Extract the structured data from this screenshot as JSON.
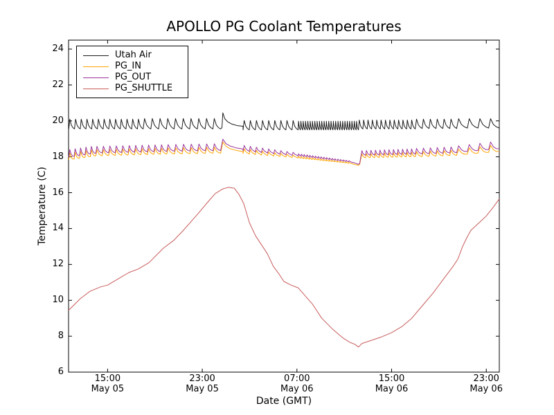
{
  "chart_data": {
    "type": "line",
    "title": "APOLLO PG Coolant Temperatures",
    "xlabel": "Date (GMT)",
    "ylabel": "Temperature (C)",
    "grid": false,
    "legend_position": "upper left",
    "x_unit": "hours since May 05 00:00 GMT",
    "xlim": [
      11.7,
      48.1
    ],
    "ylim": [
      6,
      24.5
    ],
    "yticks": [
      6,
      8,
      10,
      12,
      14,
      16,
      18,
      20,
      22,
      24
    ],
    "xticks": [
      {
        "t": 15,
        "time": "15:00",
        "date": "May 05"
      },
      {
        "t": 23,
        "time": "23:00",
        "date": "May 05"
      },
      {
        "t": 31,
        "time": "07:00",
        "date": "May 06"
      },
      {
        "t": 39,
        "time": "15:00",
        "date": "May 06"
      },
      {
        "t": 47,
        "time": "23:00",
        "date": "May 06"
      }
    ],
    "series": [
      {
        "name": "Utah Air",
        "color": "#1a1a1a",
        "description": "sawtooth oscillation around 19.5-20.1 C",
        "segments": [
          {
            "kind": "saw",
            "t": [
              11.72,
              18.0
            ],
            "period": 0.5,
            "min": 19.55,
            "amp": 0.55
          },
          {
            "kind": "saw",
            "t": [
              18.0,
              24.55
            ],
            "period": 0.68,
            "min": 19.55,
            "amp": 0.58
          },
          {
            "kind": "pts",
            "pts": [
              [
                24.55,
                19.55
              ],
              [
                24.66,
                19.62
              ],
              [
                24.74,
                20.45
              ],
              [
                24.9,
                20.12
              ],
              [
                25.15,
                19.95
              ],
              [
                25.5,
                19.82
              ],
              [
                26.0,
                19.73
              ],
              [
                26.45,
                19.7
              ]
            ]
          },
          {
            "kind": "saw",
            "t": [
              26.45,
              31.1
            ],
            "period": 0.5,
            "min": 19.5,
            "amp": 0.52
          },
          {
            "kind": "saw",
            "t": [
              31.1,
              36.2
            ],
            "period": 0.2,
            "min": 19.5,
            "amp": 0.48
          },
          {
            "kind": "saw",
            "t": [
              36.2,
              41.0
            ],
            "period": 0.37,
            "min": 19.55,
            "amp": 0.5
          },
          {
            "kind": "saw",
            "t": [
              41.0,
              44.5
            ],
            "period": 0.55,
            "min": 19.58,
            "amp": 0.52
          },
          {
            "kind": "saw",
            "t": [
              44.5,
              48.1
            ],
            "period": 0.85,
            "min": 19.6,
            "amp": 0.52
          }
        ]
      },
      {
        "name": "PG_IN",
        "color": "#ffa500",
        "description": "sawtooth around 17.5-18.8 C, dips to 17.5 near 12:00 May 06",
        "segments": [
          {
            "kind": "saw",
            "t": [
              11.72,
              14.0
            ],
            "period": 0.5,
            "min": [
              17.83,
              18.05
            ],
            "amp": 0.38
          },
          {
            "kind": "saw",
            "t": [
              14.0,
              20.0
            ],
            "period": 0.55,
            "min": [
              18.05,
              18.15
            ],
            "amp": 0.34
          },
          {
            "kind": "saw",
            "t": [
              20.0,
              24.55
            ],
            "period": 0.65,
            "min": [
              18.15,
              18.2
            ],
            "amp": 0.34
          },
          {
            "kind": "pts",
            "pts": [
              [
                24.55,
                18.2
              ],
              [
                24.74,
                18.83
              ],
              [
                25.0,
                18.58
              ],
              [
                25.35,
                18.45
              ],
              [
                25.85,
                18.36
              ],
              [
                26.45,
                18.28
              ]
            ]
          },
          {
            "kind": "saw",
            "t": [
              26.45,
              31.1
            ],
            "period": 0.5,
            "min": [
              18.18,
              17.93
            ],
            "amp": [
              0.26,
              0.12
            ]
          },
          {
            "kind": "saw",
            "t": [
              31.1,
              35.6
            ],
            "period": 0.24,
            "min": [
              17.93,
              17.62
            ],
            "amp": [
              0.1,
              0.05
            ]
          },
          {
            "kind": "pts",
            "pts": [
              [
                35.6,
                17.62
              ],
              [
                36.0,
                17.56
              ],
              [
                36.18,
                17.52
              ],
              [
                36.3,
                17.57
              ],
              [
                36.42,
                17.94
              ]
            ]
          },
          {
            "kind": "saw",
            "t": [
              36.42,
              41.0
            ],
            "period": 0.38,
            "min": [
              17.94,
              18.0
            ],
            "amp": [
              0.22,
              0.26
            ]
          },
          {
            "kind": "saw",
            "t": [
              41.0,
              44.5
            ],
            "period": 0.58,
            "min": [
              18.0,
              18.08
            ],
            "amp": [
              0.28,
              0.3
            ]
          },
          {
            "kind": "saw",
            "t": [
              44.5,
              48.1
            ],
            "period": 0.88,
            "min": [
              18.1,
              18.3
            ],
            "amp": [
              0.32,
              0.4
            ]
          }
        ]
      },
      {
        "name": "PG_OUT",
        "color": "#993399",
        "description": "sawtooth slightly above PG_IN, 17.6-18.95 C",
        "segments": [
          {
            "kind": "saw",
            "t": [
              11.72,
              14.0
            ],
            "period": 0.5,
            "min": [
              17.98,
              18.2
            ],
            "amp": 0.42
          },
          {
            "kind": "saw",
            "t": [
              14.0,
              20.0
            ],
            "period": 0.55,
            "min": [
              18.2,
              18.3
            ],
            "amp": 0.38
          },
          {
            "kind": "saw",
            "t": [
              20.0,
              24.55
            ],
            "period": 0.65,
            "min": [
              18.3,
              18.35
            ],
            "amp": 0.38
          },
          {
            "kind": "pts",
            "pts": [
              [
                24.55,
                18.35
              ],
              [
                24.74,
                18.98
              ],
              [
                25.0,
                18.73
              ],
              [
                25.35,
                18.6
              ],
              [
                25.85,
                18.5
              ],
              [
                26.45,
                18.43
              ]
            ]
          },
          {
            "kind": "saw",
            "t": [
              26.45,
              31.1
            ],
            "period": 0.5,
            "min": [
              18.33,
              18.05
            ],
            "amp": [
              0.3,
              0.15
            ]
          },
          {
            "kind": "saw",
            "t": [
              31.1,
              35.6
            ],
            "period": 0.24,
            "min": [
              18.05,
              17.7
            ],
            "amp": [
              0.12,
              0.06
            ]
          },
          {
            "kind": "pts",
            "pts": [
              [
                35.6,
                17.7
              ],
              [
                36.0,
                17.63
              ],
              [
                36.18,
                17.58
              ],
              [
                36.3,
                17.63
              ],
              [
                36.42,
                18.08
              ]
            ]
          },
          {
            "kind": "saw",
            "t": [
              36.42,
              41.0
            ],
            "period": 0.38,
            "min": [
              18.08,
              18.15
            ],
            "amp": [
              0.26,
              0.3
            ]
          },
          {
            "kind": "saw",
            "t": [
              41.0,
              44.5
            ],
            "period": 0.58,
            "min": [
              18.15,
              18.22
            ],
            "amp": [
              0.32,
              0.34
            ]
          },
          {
            "kind": "saw",
            "t": [
              44.5,
              48.1
            ],
            "period": 0.88,
            "min": [
              18.25,
              18.45
            ],
            "amp": [
              0.36,
              0.44
            ]
          }
        ]
      },
      {
        "name": "PG_SHUTTLE",
        "color": "#c85a5a",
        "description": "smooth diurnal curve: 9.5 up to 16.3 peak ~01:00 May 06, min 7.4 ~12:00 May 06, rising to 15.7",
        "segments": [
          {
            "kind": "pts",
            "pts": [
              [
                11.7,
                9.45
              ],
              [
                12.1,
                9.7
              ],
              [
                12.7,
                10.1
              ],
              [
                13.5,
                10.5
              ],
              [
                14.4,
                10.75
              ],
              [
                15.0,
                10.85
              ],
              [
                15.9,
                11.2
              ],
              [
                16.8,
                11.55
              ],
              [
                17.6,
                11.75
              ],
              [
                18.5,
                12.1
              ],
              [
                19.7,
                12.9
              ],
              [
                20.6,
                13.35
              ],
              [
                21.4,
                13.9
              ],
              [
                22.6,
                14.8
              ],
              [
                23.5,
                15.5
              ],
              [
                24.1,
                15.95
              ],
              [
                24.7,
                16.2
              ],
              [
                25.2,
                16.3
              ],
              [
                25.7,
                16.25
              ],
              [
                26.1,
                15.9
              ],
              [
                26.5,
                15.4
              ],
              [
                27.0,
                14.3
              ],
              [
                27.5,
                13.6
              ],
              [
                27.9,
                13.2
              ],
              [
                28.5,
                12.6
              ],
              [
                29.0,
                11.9
              ],
              [
                29.5,
                11.45
              ],
              [
                29.9,
                11.05
              ],
              [
                30.5,
                10.85
              ],
              [
                31.1,
                10.7
              ],
              [
                31.5,
                10.4
              ],
              [
                32.3,
                9.8
              ],
              [
                33.1,
                9.0
              ],
              [
                34.0,
                8.4
              ],
              [
                34.9,
                7.9
              ],
              [
                35.5,
                7.65
              ],
              [
                35.9,
                7.55
              ],
              [
                36.2,
                7.4
              ],
              [
                36.5,
                7.6
              ],
              [
                37.2,
                7.75
              ],
              [
                38.1,
                7.95
              ],
              [
                39.0,
                8.2
              ],
              [
                39.9,
                8.55
              ],
              [
                40.7,
                9.0
              ],
              [
                41.6,
                9.7
              ],
              [
                42.5,
                10.4
              ],
              [
                43.4,
                11.2
              ],
              [
                44.2,
                11.9
              ],
              [
                44.6,
                12.3
              ],
              [
                45.0,
                13.0
              ],
              [
                45.4,
                13.55
              ],
              [
                45.7,
                13.9
              ],
              [
                46.6,
                14.45
              ],
              [
                47.0,
                14.7
              ],
              [
                47.6,
                15.2
              ],
              [
                48.1,
                15.65
              ]
            ]
          }
        ]
      }
    ]
  }
}
